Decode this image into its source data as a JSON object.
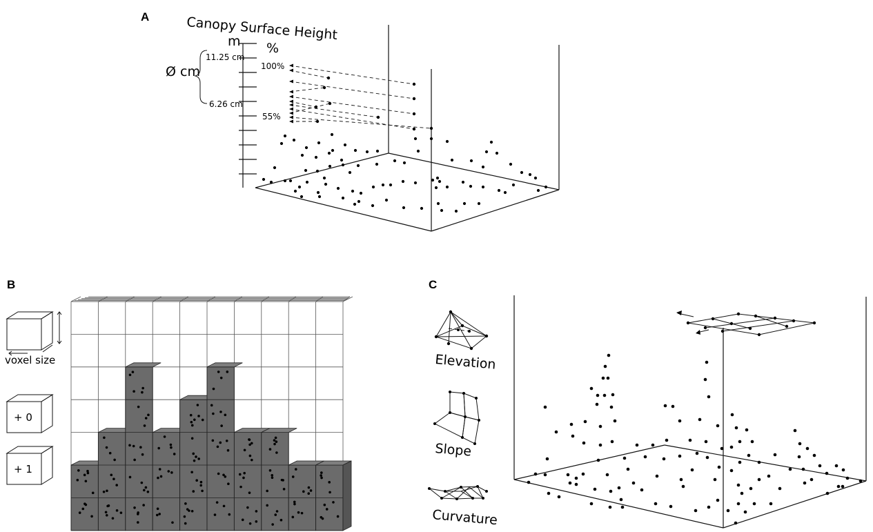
{
  "panel_a": {
    "label": "A",
    "title": "Canopy Surface Height",
    "unit_m": "m",
    "unit_pct": "%",
    "diameter_label": "Ø cm",
    "top_diameter": "11.25 cm",
    "bottom_diameter": "6.26 cm",
    "top_pct": "100%",
    "bottom_pct": "55%"
  },
  "panel_b": {
    "label": "B",
    "voxel_size_label": "voxel size",
    "empty_label": "+ 0",
    "filled_label": "+ 1",
    "colors": {
      "filled": "#6b6b6b",
      "filled_dark": "#555555",
      "filled_light": "#7f7f7f",
      "legend_fill": "#858585"
    }
  },
  "panel_c": {
    "label": "C",
    "elevation_label": "Elevation",
    "slope_label": "Slope",
    "curvature_label": "Curvature"
  }
}
